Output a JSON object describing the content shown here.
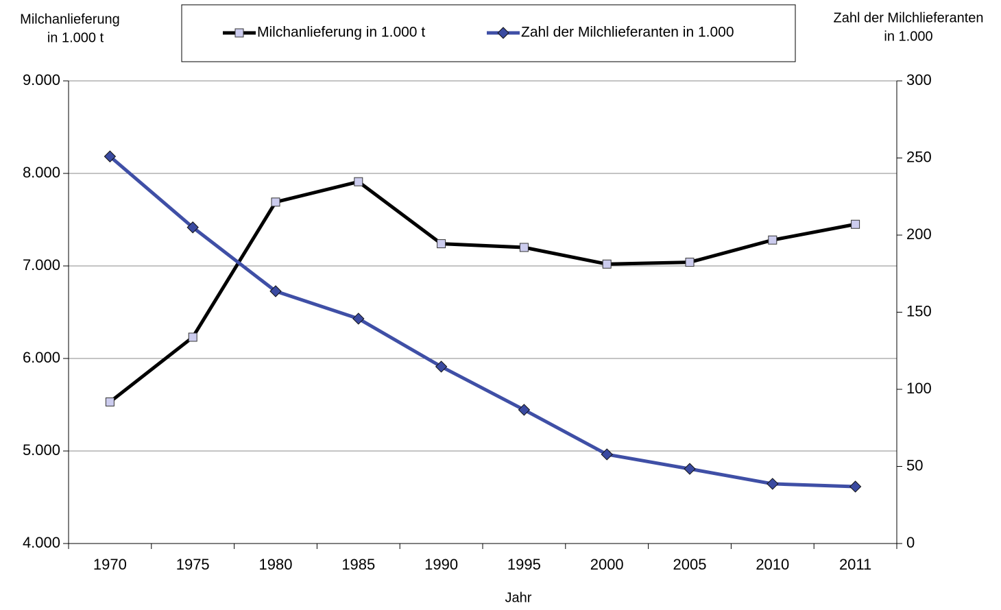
{
  "chart_data": {
    "type": "line",
    "ylabel": [
      "Milchanlieferung",
      "in 1.000 t"
    ],
    "y2label": [
      "Zahl der Milchlieferanten",
      "in 1.000"
    ],
    "xlabel": "Jahr",
    "categories": [
      "1970",
      "1975",
      "1980",
      "1985",
      "1990",
      "1995",
      "2000",
      "2005",
      "2010",
      "2011"
    ],
    "series": [
      {
        "name": "Milchanlieferung in 1.000 t",
        "color": "#000000",
        "marker": "square",
        "marker_color": "#ccccee",
        "values": [
          5530,
          6230,
          7690,
          7910,
          7240,
          7200,
          7020,
          7040,
          7280,
          7450
        ]
      },
      {
        "name": "Zahl der Milchlieferanten in 1.000",
        "color": "#3f4fa6",
        "marker": "diamond",
        "marker_color": "#3a4aa0",
        "axis": "y2",
        "values": [
          251,
          205,
          163.6,
          145.8,
          114.7,
          86.7,
          57.8,
          48.4,
          38.7,
          36.9
        ]
      }
    ],
    "ylim": [
      4000,
      9000
    ],
    "yticks": [
      {
        "value": 4000,
        "label": "4.000"
      },
      {
        "value": 5000,
        "label": "5.000"
      },
      {
        "value": 6000,
        "label": "6.000"
      },
      {
        "value": 7000,
        "label": "7.000"
      },
      {
        "value": 8000,
        "label": "8.000"
      },
      {
        "value": 9000,
        "label": "9.000"
      }
    ],
    "y2lim": [
      0,
      300
    ],
    "y2ticks": [
      0,
      50,
      100,
      150,
      200,
      250,
      300
    ],
    "grid": true,
    "legend": "top"
  }
}
